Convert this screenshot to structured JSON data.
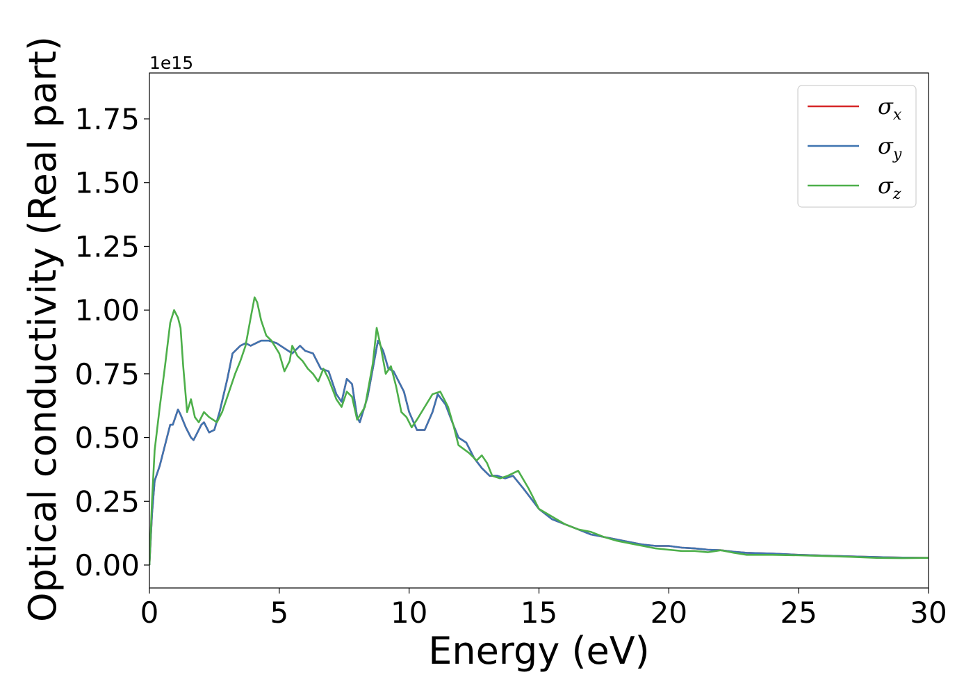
{
  "chart_data": {
    "type": "line",
    "xlabel": "Energy (eV)",
    "ylabel": "Optical conductivity (Real part)",
    "y_offset_text": "1e15",
    "xlim": [
      0,
      30
    ],
    "ylim": [
      -0.09,
      1.93
    ],
    "x_ticks": [
      0,
      5,
      10,
      15,
      20,
      25,
      30
    ],
    "x_tick_labels": [
      "0",
      "5",
      "10",
      "15",
      "20",
      "25",
      "30"
    ],
    "y_ticks": [
      0.0,
      0.25,
      0.5,
      0.75,
      1.0,
      1.25,
      1.5,
      1.75
    ],
    "y_tick_labels": [
      "0.00",
      "0.25",
      "0.50",
      "0.75",
      "1.00",
      "1.25",
      "1.50",
      "1.75"
    ],
    "grid": false,
    "legend_position": "top-right",
    "series": [
      {
        "name": "σ",
        "subscript": "x",
        "color": "#d62728",
        "points": [
          [
            0,
            0
          ],
          [
            0.1,
            0.2
          ],
          [
            0.2,
            0.33
          ],
          [
            0.4,
            0.39
          ],
          [
            0.6,
            0.47
          ],
          [
            0.8,
            0.55
          ],
          [
            0.9,
            0.55
          ],
          [
            1.0,
            0.58
          ],
          [
            1.1,
            0.61
          ],
          [
            1.2,
            0.59
          ],
          [
            1.4,
            0.54
          ],
          [
            1.6,
            0.5
          ],
          [
            1.7,
            0.49
          ],
          [
            1.8,
            0.51
          ],
          [
            2.0,
            0.55
          ],
          [
            2.1,
            0.56
          ],
          [
            2.3,
            0.52
          ],
          [
            2.5,
            0.53
          ],
          [
            2.7,
            0.6
          ],
          [
            3.0,
            0.73
          ],
          [
            3.2,
            0.83
          ],
          [
            3.5,
            0.86
          ],
          [
            3.7,
            0.87
          ],
          [
            3.9,
            0.86
          ],
          [
            4.1,
            0.87
          ],
          [
            4.3,
            0.88
          ],
          [
            4.6,
            0.88
          ],
          [
            4.9,
            0.87
          ],
          [
            5.2,
            0.85
          ],
          [
            5.5,
            0.83
          ],
          [
            5.8,
            0.86
          ],
          [
            6.0,
            0.84
          ],
          [
            6.3,
            0.83
          ],
          [
            6.6,
            0.77
          ],
          [
            6.9,
            0.76
          ],
          [
            7.2,
            0.67
          ],
          [
            7.4,
            0.64
          ],
          [
            7.6,
            0.73
          ],
          [
            7.8,
            0.71
          ],
          [
            8.0,
            0.58
          ],
          [
            8.1,
            0.56
          ],
          [
            8.4,
            0.66
          ],
          [
            8.6,
            0.77
          ],
          [
            8.8,
            0.88
          ],
          [
            9.0,
            0.84
          ],
          [
            9.2,
            0.77
          ],
          [
            9.4,
            0.76
          ],
          [
            9.6,
            0.72
          ],
          [
            9.8,
            0.68
          ],
          [
            10.0,
            0.6
          ],
          [
            10.3,
            0.53
          ],
          [
            10.6,
            0.53
          ],
          [
            10.9,
            0.6
          ],
          [
            11.1,
            0.67
          ],
          [
            11.4,
            0.63
          ],
          [
            11.7,
            0.55
          ],
          [
            11.9,
            0.5
          ],
          [
            12.2,
            0.48
          ],
          [
            12.5,
            0.42
          ],
          [
            12.8,
            0.38
          ],
          [
            13.1,
            0.35
          ],
          [
            13.4,
            0.35
          ],
          [
            13.7,
            0.34
          ],
          [
            14.0,
            0.35
          ],
          [
            14.4,
            0.3
          ],
          [
            14.7,
            0.26
          ],
          [
            15.0,
            0.22
          ],
          [
            15.5,
            0.18
          ],
          [
            16.0,
            0.16
          ],
          [
            16.5,
            0.14
          ],
          [
            17.0,
            0.12
          ],
          [
            17.5,
            0.11
          ],
          [
            18.0,
            0.1
          ],
          [
            18.5,
            0.09
          ],
          [
            19.0,
            0.08
          ],
          [
            19.5,
            0.075
          ],
          [
            20.0,
            0.075
          ],
          [
            20.5,
            0.068
          ],
          [
            21.0,
            0.065
          ],
          [
            21.5,
            0.06
          ],
          [
            22.0,
            0.058
          ],
          [
            22.5,
            0.052
          ],
          [
            23.0,
            0.048
          ],
          [
            24.0,
            0.045
          ],
          [
            25.0,
            0.04
          ],
          [
            26.0,
            0.037
          ],
          [
            27.0,
            0.034
          ],
          [
            28.0,
            0.031
          ],
          [
            29.0,
            0.029
          ],
          [
            30.0,
            0.028
          ]
        ]
      },
      {
        "name": "σ",
        "subscript": "y",
        "color": "#3f74b0",
        "points": [
          [
            0,
            0
          ],
          [
            0.1,
            0.2
          ],
          [
            0.2,
            0.33
          ],
          [
            0.4,
            0.39
          ],
          [
            0.6,
            0.47
          ],
          [
            0.8,
            0.55
          ],
          [
            0.9,
            0.55
          ],
          [
            1.0,
            0.58
          ],
          [
            1.1,
            0.61
          ],
          [
            1.2,
            0.59
          ],
          [
            1.4,
            0.54
          ],
          [
            1.6,
            0.5
          ],
          [
            1.7,
            0.49
          ],
          [
            1.8,
            0.51
          ],
          [
            2.0,
            0.55
          ],
          [
            2.1,
            0.56
          ],
          [
            2.3,
            0.52
          ],
          [
            2.5,
            0.53
          ],
          [
            2.7,
            0.6
          ],
          [
            3.0,
            0.73
          ],
          [
            3.2,
            0.83
          ],
          [
            3.5,
            0.86
          ],
          [
            3.7,
            0.87
          ],
          [
            3.9,
            0.86
          ],
          [
            4.1,
            0.87
          ],
          [
            4.3,
            0.88
          ],
          [
            4.6,
            0.88
          ],
          [
            4.9,
            0.87
          ],
          [
            5.2,
            0.85
          ],
          [
            5.5,
            0.83
          ],
          [
            5.8,
            0.86
          ],
          [
            6.0,
            0.84
          ],
          [
            6.3,
            0.83
          ],
          [
            6.6,
            0.77
          ],
          [
            6.9,
            0.76
          ],
          [
            7.2,
            0.67
          ],
          [
            7.4,
            0.64
          ],
          [
            7.6,
            0.73
          ],
          [
            7.8,
            0.71
          ],
          [
            8.0,
            0.58
          ],
          [
            8.1,
            0.56
          ],
          [
            8.4,
            0.66
          ],
          [
            8.6,
            0.77
          ],
          [
            8.8,
            0.88
          ],
          [
            9.0,
            0.84
          ],
          [
            9.2,
            0.77
          ],
          [
            9.4,
            0.76
          ],
          [
            9.6,
            0.72
          ],
          [
            9.8,
            0.68
          ],
          [
            10.0,
            0.6
          ],
          [
            10.3,
            0.53
          ],
          [
            10.6,
            0.53
          ],
          [
            10.9,
            0.6
          ],
          [
            11.1,
            0.67
          ],
          [
            11.4,
            0.63
          ],
          [
            11.7,
            0.55
          ],
          [
            11.9,
            0.5
          ],
          [
            12.2,
            0.48
          ],
          [
            12.5,
            0.42
          ],
          [
            12.8,
            0.38
          ],
          [
            13.1,
            0.35
          ],
          [
            13.4,
            0.35
          ],
          [
            13.7,
            0.34
          ],
          [
            14.0,
            0.35
          ],
          [
            14.4,
            0.3
          ],
          [
            14.7,
            0.26
          ],
          [
            15.0,
            0.22
          ],
          [
            15.5,
            0.18
          ],
          [
            16.0,
            0.16
          ],
          [
            16.5,
            0.14
          ],
          [
            17.0,
            0.12
          ],
          [
            17.5,
            0.11
          ],
          [
            18.0,
            0.1
          ],
          [
            18.5,
            0.09
          ],
          [
            19.0,
            0.08
          ],
          [
            19.5,
            0.075
          ],
          [
            20.0,
            0.075
          ],
          [
            20.5,
            0.068
          ],
          [
            21.0,
            0.065
          ],
          [
            21.5,
            0.06
          ],
          [
            22.0,
            0.058
          ],
          [
            22.5,
            0.052
          ],
          [
            23.0,
            0.048
          ],
          [
            24.0,
            0.045
          ],
          [
            25.0,
            0.04
          ],
          [
            26.0,
            0.037
          ],
          [
            27.0,
            0.034
          ],
          [
            28.0,
            0.031
          ],
          [
            29.0,
            0.029
          ],
          [
            30.0,
            0.028
          ]
        ]
      },
      {
        "name": "σ",
        "subscript": "z",
        "color": "#4daf4a",
        "points": [
          [
            0,
            0
          ],
          [
            0.1,
            0.25
          ],
          [
            0.2,
            0.45
          ],
          [
            0.4,
            0.62
          ],
          [
            0.6,
            0.78
          ],
          [
            0.8,
            0.95
          ],
          [
            0.95,
            1.0
          ],
          [
            1.1,
            0.97
          ],
          [
            1.2,
            0.93
          ],
          [
            1.3,
            0.78
          ],
          [
            1.45,
            0.6
          ],
          [
            1.6,
            0.65
          ],
          [
            1.75,
            0.58
          ],
          [
            1.9,
            0.56
          ],
          [
            2.1,
            0.6
          ],
          [
            2.3,
            0.58
          ],
          [
            2.6,
            0.56
          ],
          [
            2.8,
            0.6
          ],
          [
            3.0,
            0.66
          ],
          [
            3.3,
            0.75
          ],
          [
            3.5,
            0.8
          ],
          [
            3.7,
            0.86
          ],
          [
            3.9,
            0.97
          ],
          [
            4.05,
            1.05
          ],
          [
            4.15,
            1.03
          ],
          [
            4.3,
            0.96
          ],
          [
            4.5,
            0.9
          ],
          [
            4.7,
            0.88
          ],
          [
            5.0,
            0.83
          ],
          [
            5.2,
            0.76
          ],
          [
            5.4,
            0.8
          ],
          [
            5.5,
            0.86
          ],
          [
            5.7,
            0.82
          ],
          [
            5.9,
            0.8
          ],
          [
            6.1,
            0.77
          ],
          [
            6.3,
            0.75
          ],
          [
            6.5,
            0.72
          ],
          [
            6.7,
            0.77
          ],
          [
            6.9,
            0.73
          ],
          [
            7.2,
            0.65
          ],
          [
            7.4,
            0.62
          ],
          [
            7.6,
            0.68
          ],
          [
            7.8,
            0.66
          ],
          [
            8.0,
            0.57
          ],
          [
            8.3,
            0.62
          ],
          [
            8.6,
            0.79
          ],
          [
            8.75,
            0.93
          ],
          [
            8.9,
            0.86
          ],
          [
            9.1,
            0.75
          ],
          [
            9.3,
            0.78
          ],
          [
            9.5,
            0.7
          ],
          [
            9.7,
            0.6
          ],
          [
            9.9,
            0.58
          ],
          [
            10.1,
            0.54
          ],
          [
            10.3,
            0.57
          ],
          [
            10.6,
            0.62
          ],
          [
            10.9,
            0.67
          ],
          [
            11.2,
            0.68
          ],
          [
            11.5,
            0.62
          ],
          [
            11.7,
            0.55
          ],
          [
            11.9,
            0.47
          ],
          [
            12.3,
            0.44
          ],
          [
            12.6,
            0.41
          ],
          [
            12.8,
            0.43
          ],
          [
            13.0,
            0.4
          ],
          [
            13.2,
            0.35
          ],
          [
            13.5,
            0.34
          ],
          [
            13.8,
            0.35
          ],
          [
            14.2,
            0.37
          ],
          [
            14.6,
            0.3
          ],
          [
            15.0,
            0.22
          ],
          [
            15.5,
            0.19
          ],
          [
            16.0,
            0.16
          ],
          [
            16.5,
            0.14
          ],
          [
            17.0,
            0.13
          ],
          [
            17.5,
            0.11
          ],
          [
            18.0,
            0.095
          ],
          [
            18.5,
            0.085
          ],
          [
            19.0,
            0.075
          ],
          [
            19.5,
            0.065
          ],
          [
            20.0,
            0.06
          ],
          [
            20.5,
            0.055
          ],
          [
            21.0,
            0.055
          ],
          [
            21.5,
            0.05
          ],
          [
            22.0,
            0.058
          ],
          [
            22.5,
            0.048
          ],
          [
            23.0,
            0.04
          ],
          [
            24.0,
            0.04
          ],
          [
            25.0,
            0.038
          ],
          [
            26.0,
            0.035
          ],
          [
            27.0,
            0.032
          ],
          [
            28.0,
            0.028
          ],
          [
            29.0,
            0.027
          ],
          [
            30.0,
            0.028
          ]
        ]
      }
    ]
  }
}
